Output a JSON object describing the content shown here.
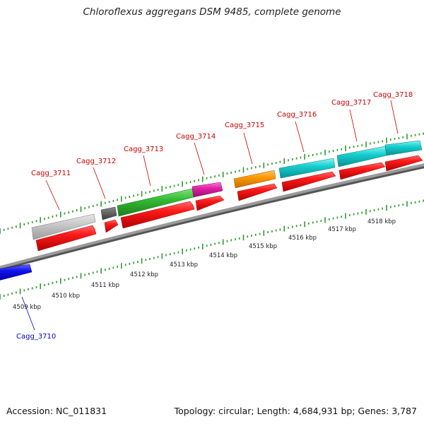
{
  "title": "Chloroflexus aggregans DSM 9485, complete genome",
  "footer": {
    "accession": "Accession: NC_011831",
    "summary": "Topology: circular; Length: 4,684,931 bp; Genes: 3,787"
  },
  "colors": {
    "label_top": "#cc0000",
    "label_bottom": "#0000cc",
    "backbone": "#8a8a8a",
    "tick": "#2e9a2e",
    "cds": "#ee1111"
  },
  "kbp_labels": [
    "4509 kbp",
    "4510 kbp",
    "4511 kbp",
    "4512 kbp",
    "4513 kbp",
    "4514 kbp",
    "4515 kbp",
    "4516 kbp",
    "4517 kbp",
    "4518 kbp"
  ],
  "genes": [
    {
      "locus": "Cagg_3710",
      "feature_color": "#1111dd",
      "labeled": "below"
    },
    {
      "locus": "Cagg_3711",
      "feature_color": "#bdbdbd",
      "labeled": "above"
    },
    {
      "locus": "Cagg_3712",
      "feature_color": "#606060",
      "labeled": "above"
    },
    {
      "locus": "Cagg_3713",
      "feature_color": "#33bb33",
      "labeled": "above"
    },
    {
      "locus": "Cagg_3714",
      "feature_color": "#dd22aa",
      "labeled": "above"
    },
    {
      "locus": "Cagg_3715",
      "feature_color": "#ff9900",
      "labeled": "above"
    },
    {
      "locus": "Cagg_3716",
      "feature_color": "#11cccc",
      "labeled": "above"
    },
    {
      "locus": "Cagg_3717",
      "feature_color": "#11cccc",
      "labeled": "above"
    },
    {
      "locus": "Cagg_3718",
      "feature_color": "#11cccc",
      "labeled": "above"
    }
  ]
}
